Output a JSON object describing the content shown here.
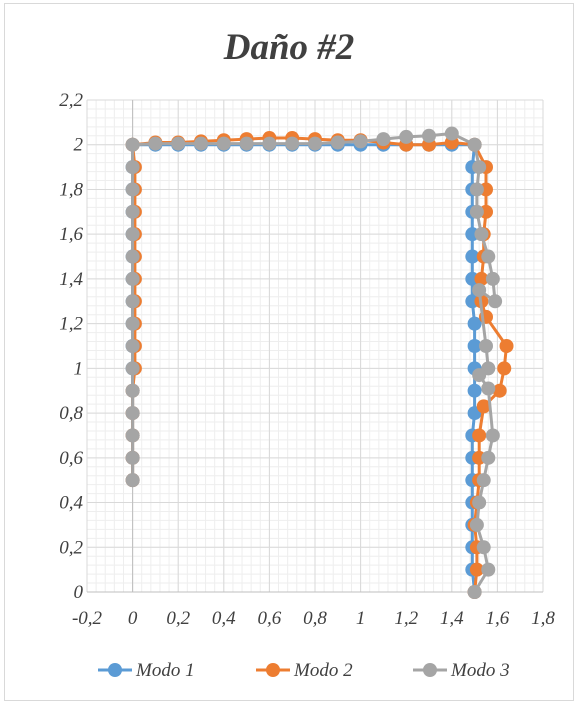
{
  "chart_data": {
    "type": "line",
    "title": "Daño #2",
    "xlabel": "",
    "ylabel": "",
    "xlim": [
      -0.2,
      1.8
    ],
    "ylim": [
      0,
      2.2
    ],
    "x_ticks": [
      "-0,2",
      "0",
      "0,2",
      "0,4",
      "0,6",
      "0,8",
      "1",
      "1,2",
      "1,4",
      "1,6",
      "1,8"
    ],
    "x_tick_values": [
      -0.2,
      0,
      0.2,
      0.4,
      0.6,
      0.8,
      1,
      1.2,
      1.4,
      1.6,
      1.8
    ],
    "y_ticks": [
      "0",
      "0,2",
      "0,4",
      "0,6",
      "0,8",
      "1",
      "1,2",
      "1,4",
      "1,6",
      "1,8",
      "2",
      "2,2"
    ],
    "y_tick_values": [
      0,
      0.2,
      0.4,
      0.6,
      0.8,
      1,
      1.2,
      1.4,
      1.6,
      1.8,
      2,
      2.2
    ],
    "grid": true,
    "legend_position": "bottom",
    "series": [
      {
        "name": "Modo 1",
        "color": "#5b9bd5",
        "points": [
          [
            0,
            0.5
          ],
          [
            0,
            0.6
          ],
          [
            0,
            0.7
          ],
          [
            0,
            0.8
          ],
          [
            0,
            0.9
          ],
          [
            0,
            1.0
          ],
          [
            0,
            1.1
          ],
          [
            0,
            1.2
          ],
          [
            0,
            1.3
          ],
          [
            0,
            1.4
          ],
          [
            0,
            1.5
          ],
          [
            0,
            1.6
          ],
          [
            0,
            1.7
          ],
          [
            0,
            1.8
          ],
          [
            0,
            1.9
          ],
          [
            0,
            2.0
          ],
          [
            0.1,
            2.0
          ],
          [
            0.2,
            2.0
          ],
          [
            0.3,
            2.0
          ],
          [
            0.4,
            2.0
          ],
          [
            0.5,
            2.0
          ],
          [
            0.6,
            2.0
          ],
          [
            0.7,
            2.0
          ],
          [
            0.8,
            2.0
          ],
          [
            0.9,
            2.0
          ],
          [
            1.0,
            2.0
          ],
          [
            1.1,
            2.0
          ],
          [
            1.2,
            2.0
          ],
          [
            1.3,
            2.0
          ],
          [
            1.4,
            2.0
          ],
          [
            1.5,
            2.0
          ],
          [
            1.49,
            1.9
          ],
          [
            1.49,
            1.8
          ],
          [
            1.49,
            1.7
          ],
          [
            1.49,
            1.6
          ],
          [
            1.49,
            1.5
          ],
          [
            1.49,
            1.4
          ],
          [
            1.49,
            1.3
          ],
          [
            1.5,
            1.2
          ],
          [
            1.5,
            1.1
          ],
          [
            1.5,
            1.0
          ],
          [
            1.5,
            0.9
          ],
          [
            1.5,
            0.8
          ],
          [
            1.49,
            0.7
          ],
          [
            1.49,
            0.6
          ],
          [
            1.49,
            0.5
          ],
          [
            1.49,
            0.4
          ],
          [
            1.49,
            0.3
          ],
          [
            1.49,
            0.2
          ],
          [
            1.49,
            0.1
          ],
          [
            1.5,
            0.0
          ]
        ]
      },
      {
        "name": "Modo 2",
        "color": "#ed7d31",
        "points": [
          [
            0,
            0.5
          ],
          [
            0,
            0.6
          ],
          [
            0,
            0.7
          ],
          [
            0,
            0.8
          ],
          [
            0,
            0.9
          ],
          [
            0.01,
            1.0
          ],
          [
            0.01,
            1.1
          ],
          [
            0.01,
            1.2
          ],
          [
            0.01,
            1.3
          ],
          [
            0.01,
            1.4
          ],
          [
            0.01,
            1.5
          ],
          [
            0.01,
            1.6
          ],
          [
            0.01,
            1.7
          ],
          [
            0.01,
            1.8
          ],
          [
            0.01,
            1.9
          ],
          [
            0,
            2.0
          ],
          [
            0.1,
            2.01
          ],
          [
            0.2,
            2.01
          ],
          [
            0.3,
            2.015
          ],
          [
            0.4,
            2.02
          ],
          [
            0.5,
            2.025
          ],
          [
            0.6,
            2.03
          ],
          [
            0.7,
            2.03
          ],
          [
            0.8,
            2.025
          ],
          [
            0.9,
            2.02
          ],
          [
            1.0,
            2.02
          ],
          [
            1.1,
            2.01
          ],
          [
            1.2,
            2.0
          ],
          [
            1.3,
            2.0
          ],
          [
            1.4,
            2.01
          ],
          [
            1.5,
            2.0
          ],
          [
            1.55,
            1.9
          ],
          [
            1.55,
            1.8
          ],
          [
            1.55,
            1.7
          ],
          [
            1.54,
            1.6
          ],
          [
            1.54,
            1.5
          ],
          [
            1.53,
            1.4
          ],
          [
            1.53,
            1.3
          ],
          [
            1.55,
            1.23
          ],
          [
            1.64,
            1.1
          ],
          [
            1.63,
            1.0
          ],
          [
            1.61,
            0.9
          ],
          [
            1.54,
            0.83
          ],
          [
            1.52,
            0.7
          ],
          [
            1.52,
            0.6
          ],
          [
            1.52,
            0.5
          ],
          [
            1.51,
            0.4
          ],
          [
            1.5,
            0.3
          ],
          [
            1.51,
            0.2
          ],
          [
            1.51,
            0.1
          ],
          [
            1.5,
            0.0
          ]
        ]
      },
      {
        "name": "Modo 3",
        "color": "#a5a5a5",
        "points": [
          [
            0,
            0.5
          ],
          [
            0,
            0.6
          ],
          [
            0,
            0.7
          ],
          [
            0,
            0.8
          ],
          [
            0,
            0.9
          ],
          [
            0,
            1.0
          ],
          [
            0,
            1.1
          ],
          [
            0,
            1.2
          ],
          [
            0,
            1.3
          ],
          [
            0,
            1.4
          ],
          [
            0,
            1.5
          ],
          [
            0,
            1.6
          ],
          [
            0,
            1.7
          ],
          [
            0,
            1.8
          ],
          [
            0,
            1.9
          ],
          [
            0,
            2.0
          ],
          [
            0.1,
            2.005
          ],
          [
            0.2,
            2.005
          ],
          [
            0.3,
            2.005
          ],
          [
            0.4,
            2.005
          ],
          [
            0.5,
            2.005
          ],
          [
            0.6,
            2.005
          ],
          [
            0.7,
            2.005
          ],
          [
            0.8,
            2.005
          ],
          [
            0.9,
            2.01
          ],
          [
            1.0,
            2.015
          ],
          [
            1.1,
            2.025
          ],
          [
            1.2,
            2.035
          ],
          [
            1.3,
            2.04
          ],
          [
            1.4,
            2.05
          ],
          [
            1.5,
            2.0
          ],
          [
            1.52,
            1.9
          ],
          [
            1.51,
            1.8
          ],
          [
            1.51,
            1.7
          ],
          [
            1.53,
            1.6
          ],
          [
            1.56,
            1.5
          ],
          [
            1.58,
            1.4
          ],
          [
            1.59,
            1.3
          ],
          [
            1.52,
            1.35
          ],
          [
            1.55,
            1.1
          ],
          [
            1.56,
            1.0
          ],
          [
            1.52,
            0.97
          ],
          [
            1.56,
            0.91
          ],
          [
            1.58,
            0.7
          ],
          [
            1.56,
            0.6
          ],
          [
            1.54,
            0.5
          ],
          [
            1.52,
            0.4
          ],
          [
            1.51,
            0.3
          ],
          [
            1.54,
            0.2
          ],
          [
            1.56,
            0.1
          ],
          [
            1.5,
            0.0
          ]
        ]
      }
    ]
  }
}
